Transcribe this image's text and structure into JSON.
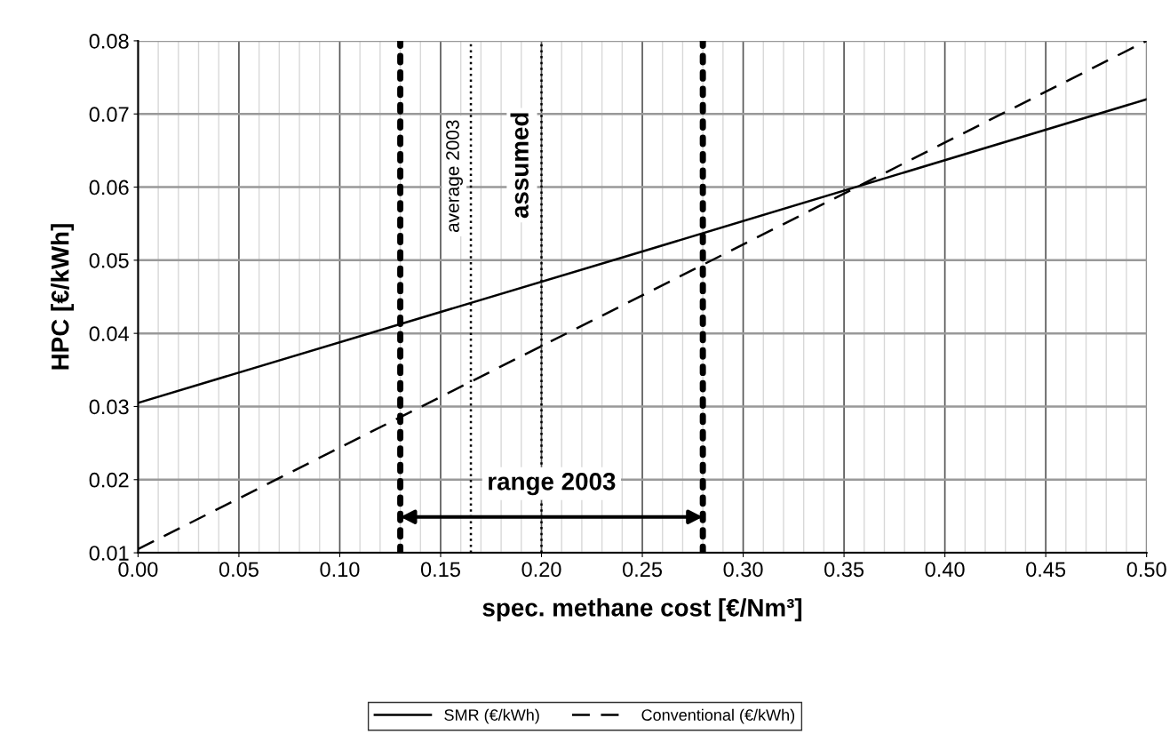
{
  "chart_data": {
    "type": "line",
    "xlabel": "spec. methane cost [€/Nm³]",
    "ylabel": "HPC [€/kWh]",
    "x": [
      0.0,
      0.25,
      0.5
    ],
    "series": [
      {
        "name": "SMR (€/kWh)",
        "color": "#000000",
        "values": [
          0.0305,
          0.0512,
          0.072
        ],
        "line_style": "solid"
      },
      {
        "name": "Conventional (€/kWh)",
        "color": "#000000",
        "values": [
          0.0105,
          0.0452,
          0.08
        ],
        "line_style": "dashed"
      }
    ],
    "xlim": [
      0.0,
      0.5
    ],
    "xticks": [
      {
        "value": 0.0,
        "label": "0.00"
      },
      {
        "value": 0.05,
        "label": "0.05"
      },
      {
        "value": 0.1,
        "label": "0.10"
      },
      {
        "value": 0.15,
        "label": "0.15"
      },
      {
        "value": 0.2,
        "label": "0.20"
      },
      {
        "value": 0.25,
        "label": "0.25"
      },
      {
        "value": 0.3,
        "label": "0.30"
      },
      {
        "value": 0.35,
        "label": "0.35"
      },
      {
        "value": 0.4,
        "label": "0.40"
      },
      {
        "value": 0.45,
        "label": "0.45"
      },
      {
        "value": 0.5,
        "label": "0.50"
      }
    ],
    "ylim": [
      0.01,
      0.08
    ],
    "yticks": [
      0.01,
      0.02,
      0.03,
      0.04,
      0.05,
      0.06,
      0.07,
      0.08
    ],
    "ref_lines": [
      {
        "axis": "x",
        "value": 0.13,
        "label": null,
        "line_style": "dotted",
        "color": "#000000"
      },
      {
        "axis": "x",
        "value": 0.165,
        "label": "average 2003",
        "line_style": "dotted",
        "color": "#000000"
      },
      {
        "axis": "x",
        "value": 0.2,
        "label": "assumed",
        "line_style": "dotted",
        "color": "#000000"
      },
      {
        "axis": "x",
        "value": 0.28,
        "label": null,
        "line_style": "dotted",
        "color": "#000000"
      }
    ],
    "annotations": [
      "range 2003"
    ],
    "grid": true,
    "legend": "bottom",
    "marker": "none"
  }
}
